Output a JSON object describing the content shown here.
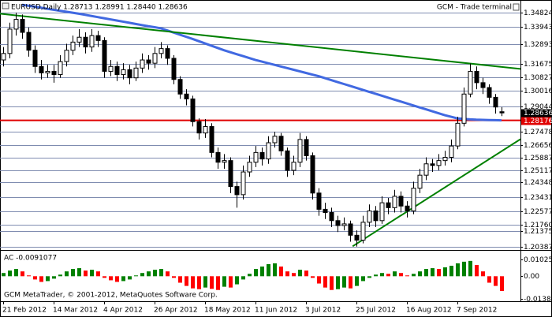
{
  "chart_data": {
    "type": "candlestick",
    "symbol_info": "EURUSD,Daily  1.28713 1.28991 1.28440 1.28636",
    "terminal": "GCM - Trade terminal",
    "copyright": "GCM MetaTrader, © 2001-2012, MetaQuotes Software Corp.",
    "categories": [
      "21 Feb 2012",
      null,
      null,
      null,
      null,
      null,
      null,
      null,
      "14 Mar 2012",
      null,
      null,
      null,
      null,
      null,
      null,
      null,
      "4 Apr 2012",
      null,
      null,
      null,
      null,
      null,
      null,
      null,
      "26 Apr 2012",
      null,
      null,
      null,
      null,
      null,
      null,
      null,
      "18 May 2012",
      null,
      null,
      null,
      null,
      null,
      null,
      null,
      "11 Jun 2012",
      null,
      null,
      null,
      null,
      null,
      null,
      null,
      "3 Jul 2012",
      null,
      null,
      null,
      null,
      null,
      null,
      null,
      "25 Jul 2012",
      null,
      null,
      null,
      null,
      null,
      null,
      null,
      "16 Aug 2012",
      null,
      null,
      null,
      null,
      null,
      null,
      null,
      "7 Sep 2012",
      null,
      null,
      null,
      null,
      null,
      null,
      null
    ],
    "open": [
      1.319,
      1.323,
      1.338,
      1.344,
      1.336,
      1.325,
      1.315,
      1.311,
      1.312,
      1.31,
      1.318,
      1.325,
      1.33,
      1.333,
      1.327,
      1.334,
      1.331,
      1.312,
      1.315,
      1.31,
      1.313,
      1.308,
      1.314,
      1.319,
      1.317,
      1.323,
      1.326,
      1.32,
      1.307,
      1.298,
      1.295,
      1.281,
      1.274,
      1.278,
      1.262,
      1.256,
      1.257,
      1.241,
      1.236,
      1.25,
      1.256,
      1.262,
      1.258,
      1.268,
      1.272,
      1.263,
      1.251,
      1.256,
      1.27,
      1.26,
      1.237,
      1.227,
      1.225,
      1.22,
      1.217,
      1.218,
      1.211,
      1.208,
      1.219,
      1.226,
      1.22,
      1.231,
      1.228,
      1.235,
      1.229,
      1.226,
      1.24,
      1.248,
      1.255,
      1.254,
      1.257,
      1.259,
      1.266,
      1.28,
      1.298,
      1.312,
      1.305,
      1.302,
      1.296,
      1.2871
    ],
    "high": [
      1.327,
      1.342,
      1.3482,
      1.347,
      1.339,
      1.328,
      1.319,
      1.316,
      1.316,
      1.322,
      1.329,
      1.334,
      1.338,
      1.336,
      1.338,
      1.337,
      1.333,
      1.319,
      1.318,
      1.317,
      1.316,
      1.318,
      1.323,
      1.322,
      1.327,
      1.33,
      1.328,
      1.322,
      1.309,
      1.301,
      1.297,
      1.283,
      1.2826,
      1.28,
      1.265,
      1.261,
      1.259,
      1.244,
      1.254,
      1.26,
      1.266,
      1.265,
      1.272,
      1.2748,
      1.274,
      1.265,
      1.26,
      1.274,
      1.272,
      1.262,
      1.24,
      1.231,
      1.228,
      1.223,
      1.222,
      1.22,
      1.214,
      1.223,
      1.23,
      1.229,
      1.235,
      1.234,
      1.239,
      1.238,
      1.232,
      1.244,
      1.252,
      1.259,
      1.258,
      1.261,
      1.263,
      1.27,
      1.284,
      1.302,
      1.3168,
      1.315,
      1.308,
      1.304,
      1.298,
      1.2899
    ],
    "low": [
      1.315,
      1.32,
      1.334,
      1.332,
      1.321,
      1.311,
      1.307,
      1.308,
      1.305,
      1.308,
      1.315,
      1.322,
      1.327,
      1.323,
      1.324,
      1.327,
      1.308,
      1.309,
      1.306,
      1.307,
      1.304,
      1.306,
      1.311,
      1.313,
      1.314,
      1.32,
      1.316,
      1.304,
      1.295,
      1.291,
      1.278,
      1.27,
      1.271,
      1.259,
      1.252,
      1.252,
      1.237,
      1.228,
      1.233,
      1.247,
      1.253,
      1.254,
      1.255,
      1.265,
      1.26,
      1.247,
      1.248,
      1.253,
      1.257,
      1.233,
      1.223,
      1.221,
      1.216,
      1.213,
      1.214,
      1.207,
      1.204,
      1.206,
      1.216,
      1.216,
      1.218,
      1.224,
      1.225,
      1.225,
      1.222,
      1.224,
      1.237,
      1.245,
      1.25,
      1.251,
      1.254,
      1.256,
      1.264,
      1.278,
      1.296,
      1.301,
      1.298,
      1.292,
      1.286,
      1.2844
    ],
    "close": [
      1.323,
      1.338,
      1.344,
      1.336,
      1.325,
      1.315,
      1.311,
      1.312,
      1.31,
      1.318,
      1.325,
      1.33,
      1.333,
      1.327,
      1.334,
      1.331,
      1.312,
      1.315,
      1.31,
      1.313,
      1.308,
      1.314,
      1.319,
      1.317,
      1.323,
      1.326,
      1.32,
      1.307,
      1.298,
      1.295,
      1.281,
      1.274,
      1.278,
      1.262,
      1.256,
      1.257,
      1.241,
      1.236,
      1.25,
      1.256,
      1.262,
      1.258,
      1.268,
      1.272,
      1.263,
      1.251,
      1.256,
      1.27,
      1.26,
      1.237,
      1.227,
      1.225,
      1.22,
      1.217,
      1.218,
      1.211,
      1.208,
      1.219,
      1.226,
      1.22,
      1.231,
      1.228,
      1.235,
      1.229,
      1.226,
      1.24,
      1.248,
      1.255,
      1.254,
      1.257,
      1.259,
      1.266,
      1.28,
      1.298,
      1.312,
      1.305,
      1.302,
      1.296,
      1.29,
      1.2864
    ],
    "moving_average": {
      "color": "#4169e1",
      "values": [
        null,
        null,
        null,
        1.353,
        1.3524,
        1.3518,
        1.3512,
        1.3505,
        1.3499,
        1.3493,
        1.3487,
        1.3481,
        1.3475,
        1.3468,
        1.3461,
        1.3454,
        1.3447,
        1.344,
        1.3433,
        1.3426,
        1.3419,
        1.3412,
        1.3405,
        1.3398,
        1.3392,
        1.3385,
        1.3372,
        1.3359,
        1.3346,
        1.3333,
        1.332,
        1.3306,
        1.3292,
        1.3278,
        1.3264,
        1.325,
        1.3238,
        1.3226,
        1.3214,
        1.3202,
        1.319,
        1.318,
        1.317,
        1.316,
        1.315,
        1.314,
        1.313,
        1.312,
        1.311,
        1.31,
        1.309,
        1.3078,
        1.3066,
        1.3054,
        1.3042,
        1.303,
        1.3018,
        1.3006,
        1.2994,
        1.2982,
        1.297,
        1.2958,
        1.2946,
        1.2934,
        1.2922,
        1.291,
        1.2898,
        1.2886,
        1.2874,
        1.2862,
        1.285,
        1.284,
        1.283,
        1.2827,
        1.2824,
        1.2822,
        1.2821,
        1.282,
        1.2819,
        1.2818
      ]
    },
    "trendlines": [
      {
        "color": "#008000",
        "x": [
          -0.5,
          82
        ],
        "y": [
          1.3475,
          1.3135
        ]
      },
      {
        "color": "#008000",
        "x": [
          55.4,
          82
        ],
        "y": [
          1.2042,
          1.2702
        ]
      }
    ],
    "ylim": [
      1.2029,
      1.354
    ],
    "yticks": [
      1.34824,
      1.33943,
      1.32893,
      1.31675,
      1.30827,
      1.30016,
      1.29044,
      1.28636,
      1.28176,
      1.27478,
      1.26656,
      1.25887,
      1.25117,
      1.24348,
      1.23431,
      1.22577,
      {
        "value": 1.2176,
        "label": "1.21760"
      },
      1.21375,
      1.20387
    ],
    "red_line": 1.28176,
    "last_price": 1.28636,
    "indicator": {
      "title": "AC -0.0091077",
      "up_color": "#008000",
      "down_color": "#ff0000",
      "ylim": [
        -0.0145,
        0.0148
      ],
      "yticks": [
        {
          "value": 0.010256,
          "label": "0.010256"
        },
        {
          "value": 0,
          "label": "0.00"
        },
        -0.01387
      ],
      "values": [
        0.002,
        0.0035,
        0.0045,
        0.003,
        0.0005,
        -0.002,
        -0.0035,
        -0.003,
        -0.0015,
        0.001,
        0.003,
        0.0045,
        0.005,
        0.0035,
        0.004,
        0.003,
        -0.001,
        -0.0025,
        -0.0035,
        -0.003,
        -0.002,
        0.0005,
        0.002,
        0.003,
        0.004,
        0.0045,
        0.003,
        -0.001,
        -0.004,
        -0.006,
        -0.0075,
        -0.008,
        -0.007,
        -0.0078,
        -0.0085,
        -0.0065,
        -0.007,
        -0.005,
        -0.002,
        0.0015,
        0.0045,
        0.006,
        0.0075,
        0.008,
        0.006,
        0.003,
        0.002,
        0.004,
        0.0035,
        -0.001,
        -0.0045,
        -0.007,
        -0.0085,
        -0.008,
        -0.007,
        -0.0075,
        -0.006,
        -0.003,
        -0.001,
        0.001,
        0.002,
        0.0015,
        0.003,
        0.002,
        0.0005,
        0.0015,
        0.003,
        0.0045,
        0.005,
        0.0045,
        0.0055,
        0.0065,
        0.008,
        0.009,
        0.0095,
        0.007,
        0.003,
        -0.004,
        -0.006,
        -0.0091077
      ]
    }
  }
}
